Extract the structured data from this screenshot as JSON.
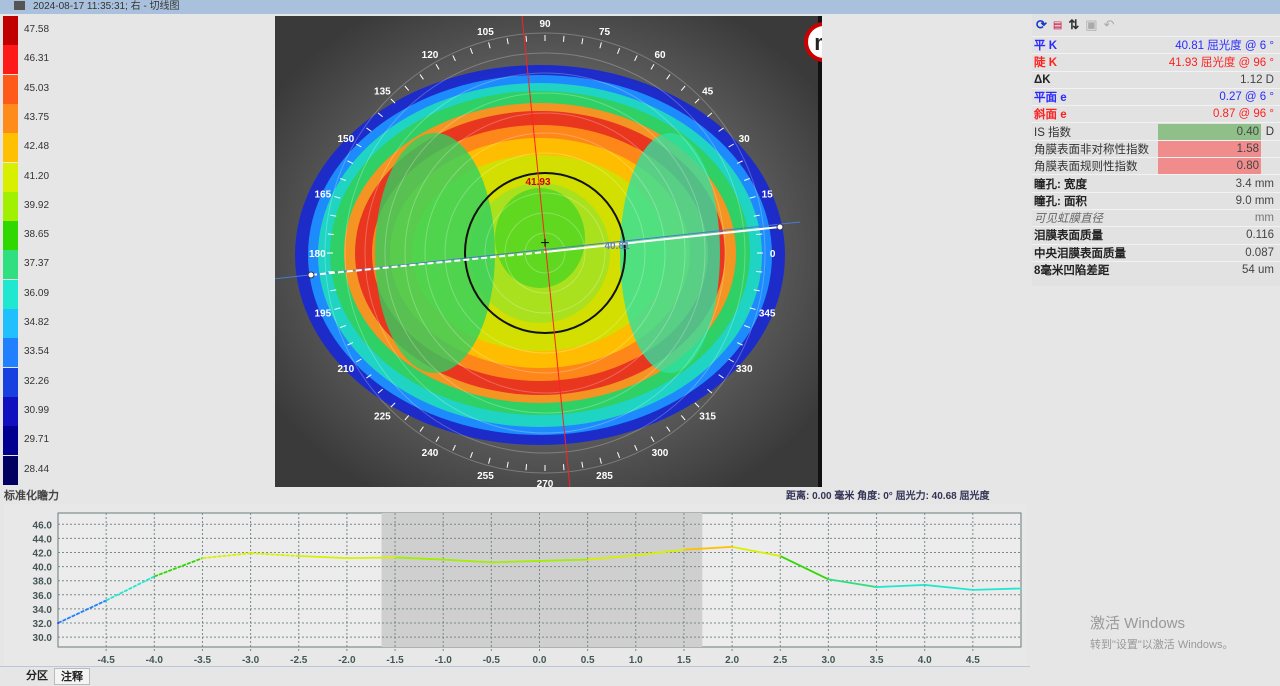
{
  "title": "2024-08-17   11:35:31; 右 - 切线图",
  "scale": {
    "label": "标准化瞻力",
    "values": [
      "47.58",
      "46.31",
      "45.03",
      "43.75",
      "42.48",
      "41.20",
      "39.92",
      "38.65",
      "37.37",
      "36.09",
      "34.82",
      "33.54",
      "32.26",
      "30.99",
      "29.71",
      "28.44"
    ],
    "colors": [
      "#c00000",
      "#ff1a1a",
      "#ff5a1a",
      "#ff8c1a",
      "#ffc000",
      "#d8f000",
      "#a0f000",
      "#30d800",
      "#30e080",
      "#20e8d0",
      "#20c0ff",
      "#2080ff",
      "#1840e0",
      "#1010c0",
      "#000090",
      "#000060"
    ]
  },
  "map": {
    "logo": "medmont",
    "angles": [
      "0",
      "15",
      "30",
      "45",
      "60",
      "75",
      "90",
      "105",
      "120",
      "135",
      "150",
      "165",
      "180",
      "195",
      "210",
      "225",
      "240",
      "255",
      "270",
      "285",
      "300",
      "315",
      "330",
      "345"
    ],
    "steep_label": "41.93",
    "flat_label": "40.81"
  },
  "status": "距离: 0.00 毫米  角度: 0°  屈光力: 40.68 屈光度",
  "panel": {
    "toolbar": [
      "refresh-icon",
      "numbers-icon",
      "sort-icon",
      "save-icon",
      "undo-icon"
    ],
    "rows": [
      {
        "label": "平 K",
        "value": "40.81 屈光度 @   6 °",
        "color": "#2a2aff"
      },
      {
        "label": "陡 K",
        "value": "41.93 屈光度 @  96 °",
        "color": "#ff2020"
      },
      {
        "label": "ΔK",
        "value": "1.12 D",
        "color": "#444"
      },
      {
        "label": "平面 e",
        "value": "0.27 @   6 °",
        "color": "#2a2aff"
      },
      {
        "label": "斜面 e",
        "value": "0.87 @  96 °",
        "color": "#ff2020"
      },
      {
        "label": "IS 指数",
        "value": "0.40",
        "unit": "D",
        "box": "#8fc08a"
      },
      {
        "label": "角膜表面非对称性指数",
        "value": "1.58",
        "box": "#f08c8c"
      },
      {
        "label": "角膜表面规则性指数",
        "value": "0.80",
        "box": "#f08c8c"
      },
      {
        "label": "瞳孔: 宽度",
        "value": "3.4 mm",
        "color": "#444"
      },
      {
        "label": "瞳孔: 面积",
        "value": "9.0 mm",
        "color": "#444"
      },
      {
        "label": "可见虹膜直径",
        "value": "mm",
        "color": "#777",
        "italic": true
      },
      {
        "label": "泪膜表面质量",
        "value": "0.116",
        "color": "#444"
      },
      {
        "label": "中央泪膜表面质量",
        "value": "0.087",
        "color": "#444"
      },
      {
        "label": "8毫米凹陷差距",
        "value": "54 um",
        "color": "#444"
      }
    ]
  },
  "chart_data": {
    "type": "line",
    "x": [
      -5,
      -4.5,
      -4,
      -3.5,
      -3,
      -2.5,
      -2,
      -1.5,
      -1,
      -0.5,
      0,
      0.5,
      1,
      1.5,
      2,
      2.5,
      3,
      3.5,
      4,
      4.5,
      5
    ],
    "y": [
      32.0,
      35.2,
      38.6,
      41.2,
      41.9,
      41.5,
      41.2,
      41.3,
      41.0,
      40.6,
      40.8,
      41.0,
      41.6,
      42.4,
      42.8,
      41.5,
      38.2,
      37.1,
      37.4,
      36.7,
      36.9
    ],
    "xlim": [
      -5,
      5
    ],
    "ylim": [
      28.6,
      47.6
    ],
    "xticks": [
      "-4.5",
      "-4.0",
      "-3.5",
      "-3.0",
      "-2.5",
      "-2.0",
      "-1.5",
      "-1.0",
      "-0.5",
      "0.0",
      "0.5",
      "1.0",
      "1.5",
      "2.0",
      "2.5",
      "3.0",
      "3.5",
      "4.0",
      "4.5"
    ],
    "yticks": [
      "46.0",
      "44.0",
      "42.0",
      "40.0",
      "38.0",
      "36.0",
      "34.0",
      "32.0",
      "30.0"
    ],
    "shaded_range": [
      -1.64,
      1.69
    ],
    "grid": true
  },
  "tabs": [
    "分区",
    "注释"
  ],
  "watermark": {
    "line1": "激活 Windows",
    "line2": "转到\"设置\"以激活 Windows。"
  }
}
